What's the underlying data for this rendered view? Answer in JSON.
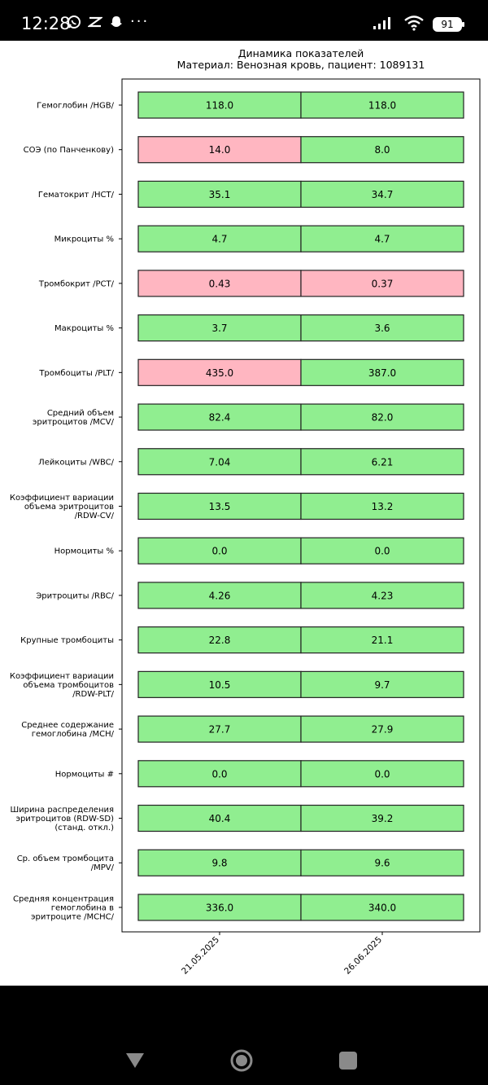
{
  "status_bar": {
    "time": "12:28",
    "battery": "91",
    "left_icons": [
      "whatsapp-icon",
      "capcut-icon",
      "snapchat-icon"
    ],
    "right_icons": [
      "signal-icon",
      "wifi-icon",
      "battery-icon"
    ],
    "more": "···"
  },
  "navigation": {
    "buttons": [
      "back-icon",
      "home-icon",
      "recents-icon"
    ]
  },
  "colors": {
    "normal": "#90EE90",
    "abnormal": "#FFB6C1",
    "edge": "#222222"
  },
  "chart_data": {
    "type": "table",
    "title": "Динамика показателей",
    "subtitle": "Материал: Венозная кровь, пациент: 1089131",
    "columns": [
      "21.05.2025",
      "26.06.2025"
    ],
    "rows": [
      {
        "label": [
          "Гемоглобин /HGB/"
        ],
        "values": [
          "118.0",
          "118.0"
        ],
        "status": [
          "normal",
          "normal"
        ]
      },
      {
        "label": [
          "СОЭ (по Панченкову)"
        ],
        "values": [
          "14.0",
          "8.0"
        ],
        "status": [
          "abnormal",
          "normal"
        ]
      },
      {
        "label": [
          "Гематокрит /HCT/"
        ],
        "values": [
          "35.1",
          "34.7"
        ],
        "status": [
          "normal",
          "normal"
        ]
      },
      {
        "label": [
          "Микроциты %"
        ],
        "values": [
          "4.7",
          "4.7"
        ],
        "status": [
          "normal",
          "normal"
        ]
      },
      {
        "label": [
          "Тромбокрит /PCT/"
        ],
        "values": [
          "0.43",
          "0.37"
        ],
        "status": [
          "abnormal",
          "abnormal"
        ]
      },
      {
        "label": [
          "Макроциты %"
        ],
        "values": [
          "3.7",
          "3.6"
        ],
        "status": [
          "normal",
          "normal"
        ]
      },
      {
        "label": [
          "Тромбоциты /PLT/"
        ],
        "values": [
          "435.0",
          "387.0"
        ],
        "status": [
          "abnormal",
          "normal"
        ]
      },
      {
        "label": [
          "Средний объем",
          "эритроцитов /MCV/"
        ],
        "values": [
          "82.4",
          "82.0"
        ],
        "status": [
          "normal",
          "normal"
        ]
      },
      {
        "label": [
          "Лейкоциты /WBC/"
        ],
        "values": [
          "7.04",
          "6.21"
        ],
        "status": [
          "normal",
          "normal"
        ]
      },
      {
        "label": [
          "Коэффициент вариации",
          "объема эритроцитов",
          "/RDW-CV/"
        ],
        "values": [
          "13.5",
          "13.2"
        ],
        "status": [
          "normal",
          "normal"
        ]
      },
      {
        "label": [
          "Нормоциты %"
        ],
        "values": [
          "0.0",
          "0.0"
        ],
        "status": [
          "normal",
          "normal"
        ]
      },
      {
        "label": [
          "Эритроциты /RBC/"
        ],
        "values": [
          "4.26",
          "4.23"
        ],
        "status": [
          "normal",
          "normal"
        ]
      },
      {
        "label": [
          "Крупные тромбоциты"
        ],
        "values": [
          "22.8",
          "21.1"
        ],
        "status": [
          "normal",
          "normal"
        ]
      },
      {
        "label": [
          "Коэффициент вариации",
          "объема тромбоцитов",
          "/RDW-PLT/"
        ],
        "values": [
          "10.5",
          "9.7"
        ],
        "status": [
          "normal",
          "normal"
        ]
      },
      {
        "label": [
          "Среднее содержание",
          "гемоглобина /MCH/"
        ],
        "values": [
          "27.7",
          "27.9"
        ],
        "status": [
          "normal",
          "normal"
        ]
      },
      {
        "label": [
          "Нормоциты #"
        ],
        "values": [
          "0.0",
          "0.0"
        ],
        "status": [
          "normal",
          "normal"
        ]
      },
      {
        "label": [
          "Ширина распределения",
          "эритроцитов (RDW-SD)",
          "(станд. откл.)"
        ],
        "values": [
          "40.4",
          "39.2"
        ],
        "status": [
          "normal",
          "normal"
        ]
      },
      {
        "label": [
          "Ср. объем тромбоцита",
          "/MPV/"
        ],
        "values": [
          "9.8",
          "9.6"
        ],
        "status": [
          "normal",
          "normal"
        ]
      },
      {
        "label": [
          "Средняя концентрация",
          "гемоглобина в",
          "эритроците /MCHC/"
        ],
        "values": [
          "336.0",
          "340.0"
        ],
        "status": [
          "normal",
          "normal"
        ]
      }
    ]
  }
}
